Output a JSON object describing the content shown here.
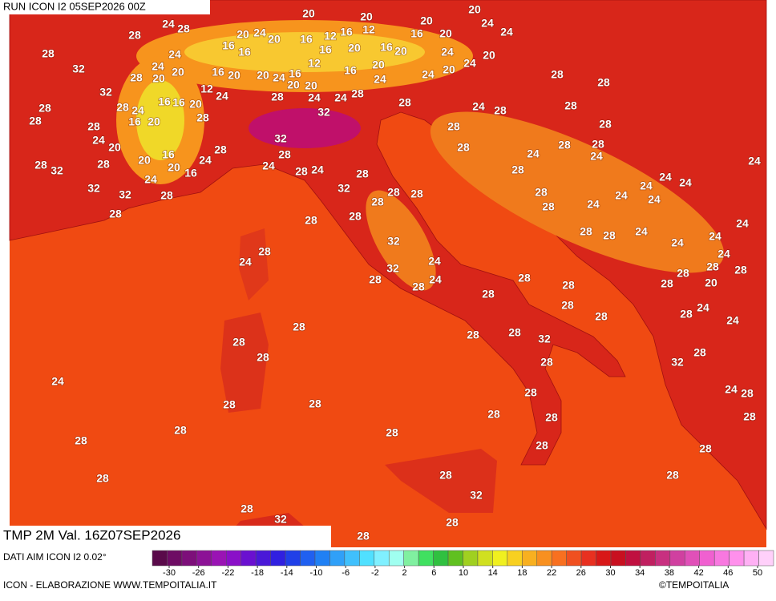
{
  "header": {
    "run": "RUN ICON I2 05SEP2026 00Z",
    "field": "TMP 2M Val. 16Z07SEP2026",
    "source": "DATI AIM ICON I2 0.02°",
    "credit": "ICON - ELABORAZIONE WWW.TEMPOITALIA.IT",
    "copyright": "©TEMPOITALIA"
  },
  "legend": {
    "ticks": [
      -30,
      -26,
      -22,
      -18,
      -14,
      -10,
      -6,
      -2,
      2,
      6,
      10,
      14,
      18,
      22,
      26,
      30,
      34,
      38,
      42,
      46,
      50
    ],
    "colors": [
      "#5a0a4a",
      "#6e0c64",
      "#7d0f7a",
      "#8c1296",
      "#9a14b4",
      "#8a10c8",
      "#6a10d0",
      "#4a18d8",
      "#3020e0",
      "#2040e8",
      "#2060f0",
      "#2080f4",
      "#30a0f8",
      "#40c0fc",
      "#50e0ff",
      "#80f0ff",
      "#a0fff0",
      "#80f0a0",
      "#40e060",
      "#30c040",
      "#60c020",
      "#a0d020",
      "#d0e020",
      "#f0f020",
      "#f8d020",
      "#f8b020",
      "#f89020",
      "#f87020",
      "#f05020",
      "#e83020",
      "#d81818",
      "#c81020",
      "#c01040",
      "#c02060",
      "#c83080",
      "#d040a0",
      "#e050b8",
      "#f060d0",
      "#f878e0",
      "#ff90ec",
      "#ffb0f4",
      "#ffd0fa"
    ]
  },
  "map_labels": [
    20,
    20,
    20,
    20,
    24,
    24,
    24,
    28,
    28,
    28,
    32,
    20,
    24,
    20,
    16,
    12,
    16,
    12,
    16,
    20,
    16,
    16,
    16,
    20,
    16,
    20,
    24,
    20,
    24,
    24,
    20,
    16,
    20,
    20,
    24,
    16,
    12,
    16,
    20,
    28,
    20,
    24,
    24,
    20,
    24,
    28,
    28,
    32,
    12,
    20,
    20,
    16,
    16,
    20,
    24,
    28,
    24,
    24,
    28,
    28,
    24,
    28,
    28,
    28,
    28,
    24,
    28,
    28,
    16,
    20,
    28,
    32,
    28,
    28,
    24,
    20,
    32,
    28,
    28,
    28,
    28,
    28,
    24,
    24,
    16,
    20,
    28,
    32,
    28,
    20,
    16,
    24,
    24,
    28,
    24,
    28,
    28,
    24,
    24,
    24,
    24,
    32,
    32,
    28,
    32,
    28,
    28,
    28,
    24,
    24,
    28,
    28,
    24,
    24,
    28,
    28,
    28,
    24,
    28,
    28,
    24,
    24,
    28,
    32,
    24,
    24,
    24,
    24,
    32,
    28,
    28,
    28,
    24,
    28,
    28,
    28,
    28,
    20,
    28,
    28,
    28,
    24,
    28,
    28,
    28,
    24,
    28,
    28,
    32,
    28,
    28,
    28,
    32,
    28,
    24,
    24,
    28,
    28,
    28,
    28,
    28,
    28,
    28,
    28,
    28,
    28,
    28,
    28,
    28,
    28,
    28,
    32,
    28,
    32,
    28,
    28
  ]
}
